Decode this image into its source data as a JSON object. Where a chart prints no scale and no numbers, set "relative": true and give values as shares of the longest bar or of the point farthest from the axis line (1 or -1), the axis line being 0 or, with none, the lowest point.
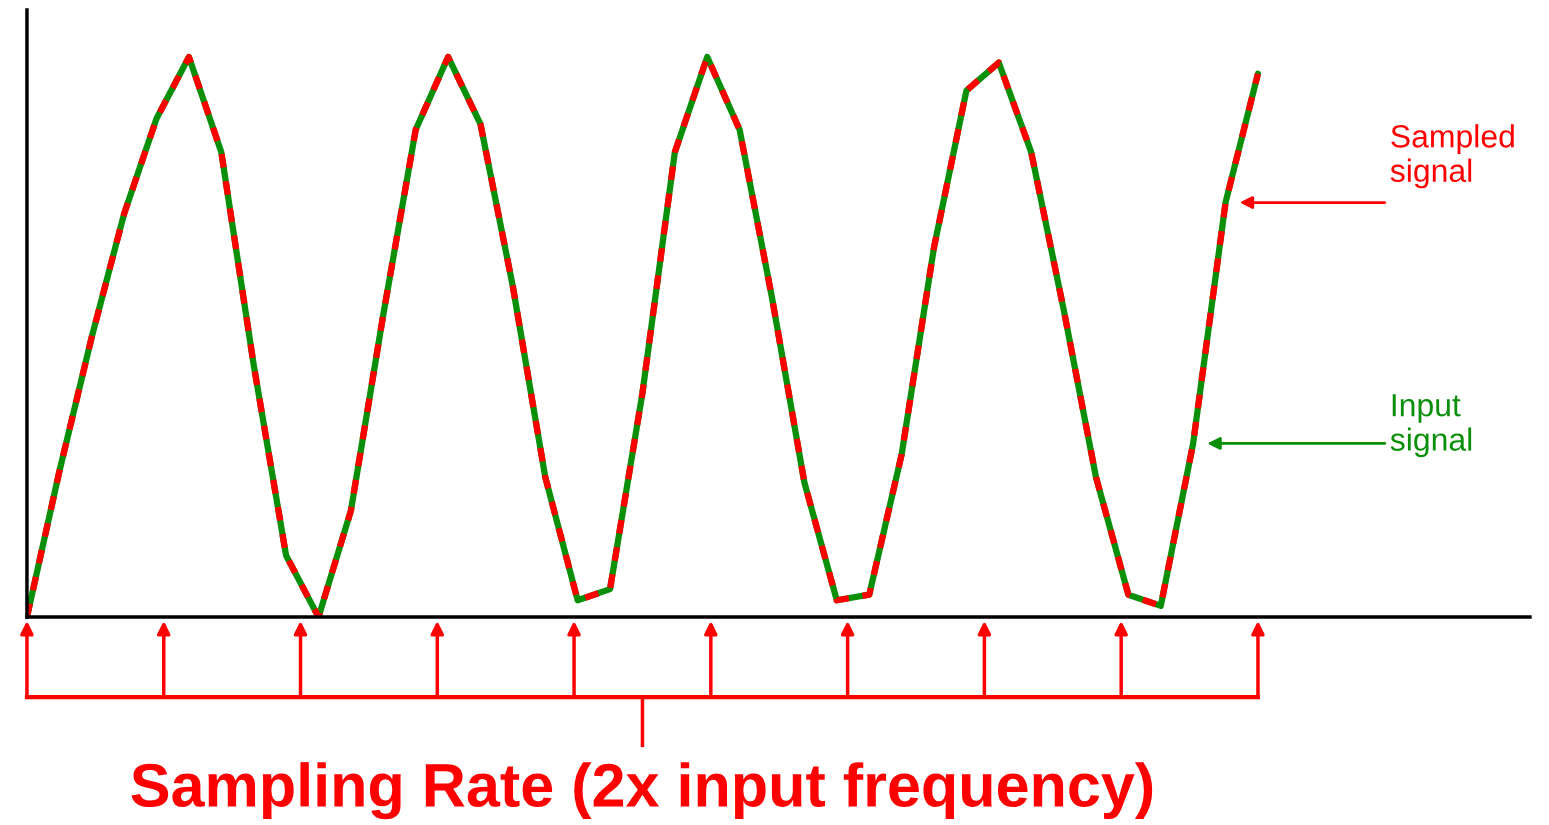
{
  "chart_data": {
    "type": "line",
    "relative": true,
    "xlabel": "Sampling Rate (2x input frequency)",
    "categories": [
      null,
      null,
      null,
      null,
      null,
      null,
      null,
      null,
      null,
      null,
      null,
      null,
      null,
      null,
      null,
      null,
      null,
      null,
      null,
      null,
      null,
      null,
      null,
      null,
      null,
      null,
      null,
      null,
      null,
      null,
      null,
      null,
      null,
      null,
      null,
      null,
      null,
      null,
      null
    ],
    "series": [
      {
        "name": "Input signal",
        "color": "#0a8f0a",
        "line_style": "solid",
        "values": [
          0,
          0.26,
          0.5,
          0.72,
          0.89,
          1.0,
          0.83,
          0.45,
          0.11,
          0.0,
          0.19,
          0.54,
          0.87,
          1.0,
          0.88,
          0.59,
          0.25,
          0.03,
          0.05,
          0.4,
          0.83,
          1.0,
          0.87,
          0.57,
          0.24,
          0.03,
          0.04,
          0.29,
          0.66,
          0.94,
          0.99,
          0.83,
          0.55,
          0.25,
          0.04,
          0.02,
          0.31,
          0.74,
          0.97
        ]
      },
      {
        "name": "Sampled signal",
        "color": "#ff0000",
        "line_style": "dashed",
        "values": [
          0,
          0.26,
          0.5,
          0.72,
          0.89,
          1.0,
          0.83,
          0.45,
          0.11,
          0.0,
          0.19,
          0.54,
          0.87,
          1.0,
          0.88,
          0.59,
          0.25,
          0.03,
          0.05,
          0.4,
          0.83,
          1.0,
          0.87,
          0.57,
          0.24,
          0.03,
          0.04,
          0.29,
          0.66,
          0.94,
          0.99,
          0.83,
          0.55,
          0.25,
          0.04,
          0.02,
          0.31,
          0.74,
          0.97
        ]
      }
    ],
    "legend": false,
    "marker": "none"
  }
}
